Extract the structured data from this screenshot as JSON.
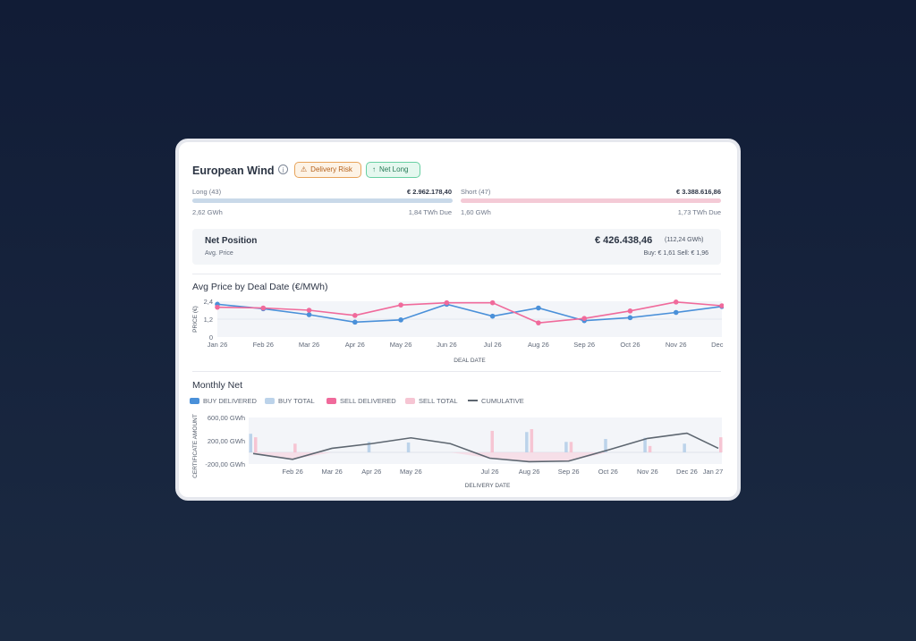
{
  "header": {
    "title": "European Wind",
    "info_icon": "info-icon",
    "badges": [
      {
        "label": "Delivery Risk",
        "icon": "warning-icon",
        "color": "#b5601a"
      },
      {
        "label": "Net Long",
        "icon": "arrow-up-icon",
        "color": "#257a56"
      }
    ]
  },
  "long": {
    "label": "Long (43)",
    "amount": "€ 2.962.178,40",
    "volume": "2,62 GWh",
    "due": "1,84 TWh Due",
    "bar_color": "#c9d9e9"
  },
  "short": {
    "label": "Short (47)",
    "amount": "€ 3.388.616,86",
    "volume": "1,60 GWh",
    "due": "1,73 TWh Due",
    "bar_color": "#f4cad6"
  },
  "net_position": {
    "title": "Net Position",
    "value": "€ 426.438,46",
    "gwh": "(112,24 GWh)",
    "avg_price_label": "Avg. Price",
    "buy_sell": "Buy: € 1,61   Sell: € 1,96"
  },
  "colors": {
    "buy": "#4a90d9",
    "sell": "#f06a9b",
    "buy_total": "#bcd3ea",
    "sell_total": "#f6c5d3",
    "cumulative": "#5d6670"
  },
  "chart_data": [
    {
      "type": "line",
      "title": "Avg Price by Deal Date (€/MWh)",
      "xlabel": "DEAL DATE",
      "ylabel": "PRICE (€)",
      "categories": [
        "Jan 26",
        "Feb 26",
        "Mar 26",
        "Apr 26",
        "May 26",
        "Jun 26",
        "Jul 26",
        "Aug 26",
        "Sep 26",
        "Oct 26",
        "Nov 26",
        "Dec 26"
      ],
      "yticks": [
        "2,4",
        "1,2",
        "0"
      ],
      "ylim": [
        0,
        2.4
      ],
      "series": [
        {
          "color": "#4a90d9",
          "values": [
            2.2,
            1.9,
            1.5,
            1.0,
            1.15,
            2.2,
            1.4,
            1.95,
            1.1,
            1.3,
            1.65,
            2.05
          ]
        },
        {
          "color": "#f06a9b",
          "values": [
            2.0,
            1.95,
            1.8,
            1.45,
            2.15,
            2.3,
            2.3,
            0.95,
            1.25,
            1.75,
            2.35,
            2.1
          ]
        }
      ]
    },
    {
      "type": "bar",
      "title": "Monthly Net",
      "xlabel": "DELIVERY DATE",
      "ylabel": "CERTIFICATE AMOUNT",
      "legend": [
        "BUY DELIVERED",
        "BUY TOTAL",
        "SELL DELIVERED",
        "SELL TOTAL",
        "CUMULATIVE"
      ],
      "ytick_labels": [
        "600,00 GWh",
        "200,00 GWh",
        "-200,00 GWh"
      ],
      "ylim": [
        -200,
        600
      ],
      "categories": [
        "Jan 26",
        "Feb 26",
        "Mar 26",
        "Apr 26",
        "May 26",
        "Jun 26",
        "Jul 26",
        "Aug 26",
        "Sep 26",
        "Oct 26",
        "Nov 26",
        "Dec 26",
        "Jan 27"
      ],
      "xtick_labels": [
        "Feb 26",
        "Mar 26",
        "Apr 26",
        "May 26",
        "Jul 26",
        "Aug 26",
        "Sep 26",
        "Oct 26",
        "Nov 26",
        "Dec 26",
        "Jan 27"
      ],
      "buy_total": [
        320,
        0,
        0,
        180,
        170,
        0,
        0,
        350,
        180,
        230,
        250,
        150,
        0
      ],
      "sell_total": [
        260,
        150,
        0,
        0,
        0,
        0,
        370,
        400,
        180,
        0,
        110,
        0,
        260
      ],
      "cumulative": [
        -20,
        -120,
        70,
        150,
        250,
        150,
        -100,
        -160,
        -150,
        40,
        240,
        330,
        70
      ]
    }
  ]
}
